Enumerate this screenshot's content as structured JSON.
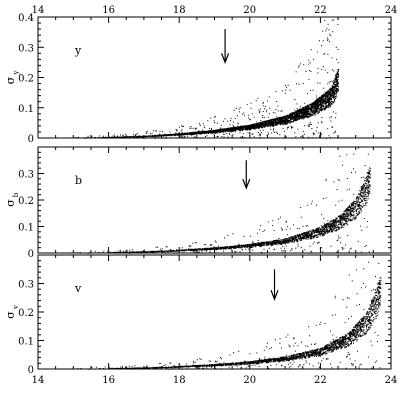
{
  "chart_data": {
    "type": "scatter",
    "xlim": [
      14,
      24
    ],
    "x_ticks": [
      14,
      16,
      18,
      20,
      22,
      24
    ],
    "x_tick_labels": [
      "14",
      "16",
      "18",
      "20",
      "22",
      "24"
    ],
    "panels": [
      {
        "panel_label": "y",
        "ylabel": "σ",
        "ylabel_sub": "y",
        "ylim": [
          0,
          0.4
        ],
        "y_ticks": [
          0,
          0.1,
          0.2,
          0.3,
          0.4
        ],
        "y_tick_labels": [
          "0",
          "0.1",
          "0.2",
          "0.3",
          "0.4"
        ],
        "arrow_x": 19.3,
        "arrow_from_y": 0.36,
        "arrow_to_y": 0.25,
        "envelope": [
          [
            14.7,
            0.002
          ],
          [
            16,
            0.004
          ],
          [
            17,
            0.008
          ],
          [
            18,
            0.016
          ],
          [
            19,
            0.028
          ],
          [
            20,
            0.045
          ],
          [
            21,
            0.075
          ],
          [
            21.8,
            0.12
          ],
          [
            22.3,
            0.17
          ],
          [
            22.5,
            0.235
          ]
        ],
        "x_range": [
          14.7,
          22.5
        ],
        "n_points": 5200,
        "x_label_position": "top"
      },
      {
        "panel_label": "b",
        "ylabel": "σ",
        "ylabel_sub": "b",
        "ylim": [
          0,
          0.4
        ],
        "y_ticks": [
          0,
          0.1,
          0.2,
          0.3
        ],
        "y_tick_labels": [
          "0",
          "0.1",
          "0.2",
          "0.3"
        ],
        "arrow_x": 19.9,
        "arrow_from_y": 0.35,
        "arrow_to_y": 0.245,
        "envelope": [
          [
            14.7,
            0.002
          ],
          [
            16,
            0.004
          ],
          [
            17,
            0.007
          ],
          [
            18,
            0.013
          ],
          [
            19,
            0.022
          ],
          [
            20,
            0.035
          ],
          [
            21,
            0.056
          ],
          [
            22,
            0.1
          ],
          [
            22.6,
            0.15
          ],
          [
            23,
            0.21
          ],
          [
            23.4,
            0.33
          ]
        ],
        "x_range": [
          14.7,
          23.4
        ],
        "n_points": 5200,
        "x_label_position": "none"
      },
      {
        "panel_label": "v",
        "ylabel": "σ",
        "ylabel_sub": "v",
        "ylim": [
          0,
          0.4
        ],
        "y_ticks": [
          0,
          0.1,
          0.2,
          0.3
        ],
        "y_tick_labels": [
          "0",
          "0.1",
          "0.2",
          "0.3"
        ],
        "arrow_x": 20.7,
        "arrow_from_y": 0.35,
        "arrow_to_y": 0.245,
        "envelope": [
          [
            14.7,
            0.002
          ],
          [
            16,
            0.004
          ],
          [
            17,
            0.006
          ],
          [
            18,
            0.011
          ],
          [
            19,
            0.018
          ],
          [
            20,
            0.028
          ],
          [
            21,
            0.045
          ],
          [
            22,
            0.075
          ],
          [
            22.8,
            0.13
          ],
          [
            23.3,
            0.2
          ],
          [
            23.7,
            0.33
          ]
        ],
        "x_range": [
          14.7,
          23.7
        ],
        "n_points": 5800,
        "x_label_position": "bottom"
      }
    ]
  }
}
